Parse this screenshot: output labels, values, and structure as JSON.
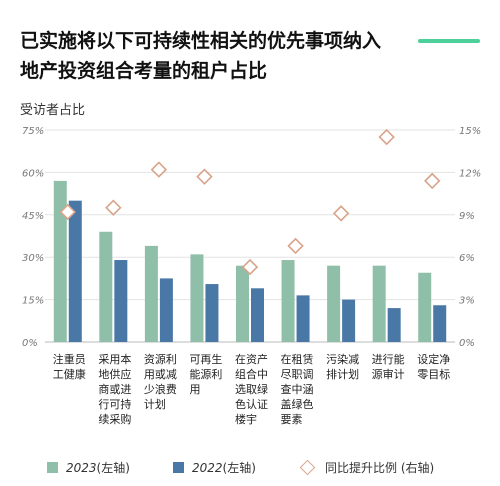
{
  "title": "已实施将以下可持续性相关的优先事项纳入地产投资组合考量的租户占比",
  "axis_title": "受访者占比",
  "colors": {
    "s2023": "#8fbfa8",
    "s2022": "#4a78a6",
    "diamond_stroke": "#d9a38a",
    "accent": "#4ed09a"
  },
  "legend": {
    "s2023_year": "2023",
    "s2023_suffix": "(左轴)",
    "s2022_year": "2022",
    "s2022_suffix": "(左轴)",
    "growth": "同比提升比例 (右轴)"
  },
  "chart_data": {
    "type": "bar",
    "categories": [
      [
        "注重员",
        "工健康"
      ],
      [
        "采用本",
        "地供应",
        "商或进",
        "行可持",
        "续采购"
      ],
      [
        "资源利",
        "用或减",
        "少浪费",
        "计划"
      ],
      [
        "可再生",
        "能源利",
        "用"
      ],
      [
        "在资产",
        "组合中",
        "选取绿",
        "色认证",
        "楼宇"
      ],
      [
        "在租赁",
        "尽职调",
        "查中涵",
        "盖绿色",
        "要素"
      ],
      [
        "污染减",
        "排计划"
      ],
      [
        "进行能",
        "源审计"
      ],
      [
        "设定净",
        "零目标"
      ]
    ],
    "series": [
      {
        "name": "2023 (左轴)",
        "axis": "left",
        "values": [
          57,
          39,
          34,
          31,
          27,
          29,
          27,
          27,
          24.5
        ]
      },
      {
        "name": "2022 (左轴)",
        "axis": "left",
        "values": [
          50,
          29,
          22.5,
          20.5,
          19,
          16.5,
          15,
          12,
          13
        ]
      },
      {
        "name": "同比提升比例 (右轴)",
        "axis": "right",
        "values": [
          9.2,
          9.5,
          12.2,
          11.7,
          5.3,
          6.8,
          9.1,
          14.5,
          11.4
        ]
      }
    ],
    "left_axis": {
      "ylim": [
        0,
        75
      ],
      "ticks": [
        "0%",
        "15%",
        "30%",
        "45%",
        "60%",
        "75%"
      ]
    },
    "right_axis": {
      "ylim": [
        0,
        15
      ],
      "ticks": [
        "0%",
        "3%",
        "6%",
        "9%",
        "12%",
        "15%"
      ]
    },
    "legend_position": "bottom"
  }
}
